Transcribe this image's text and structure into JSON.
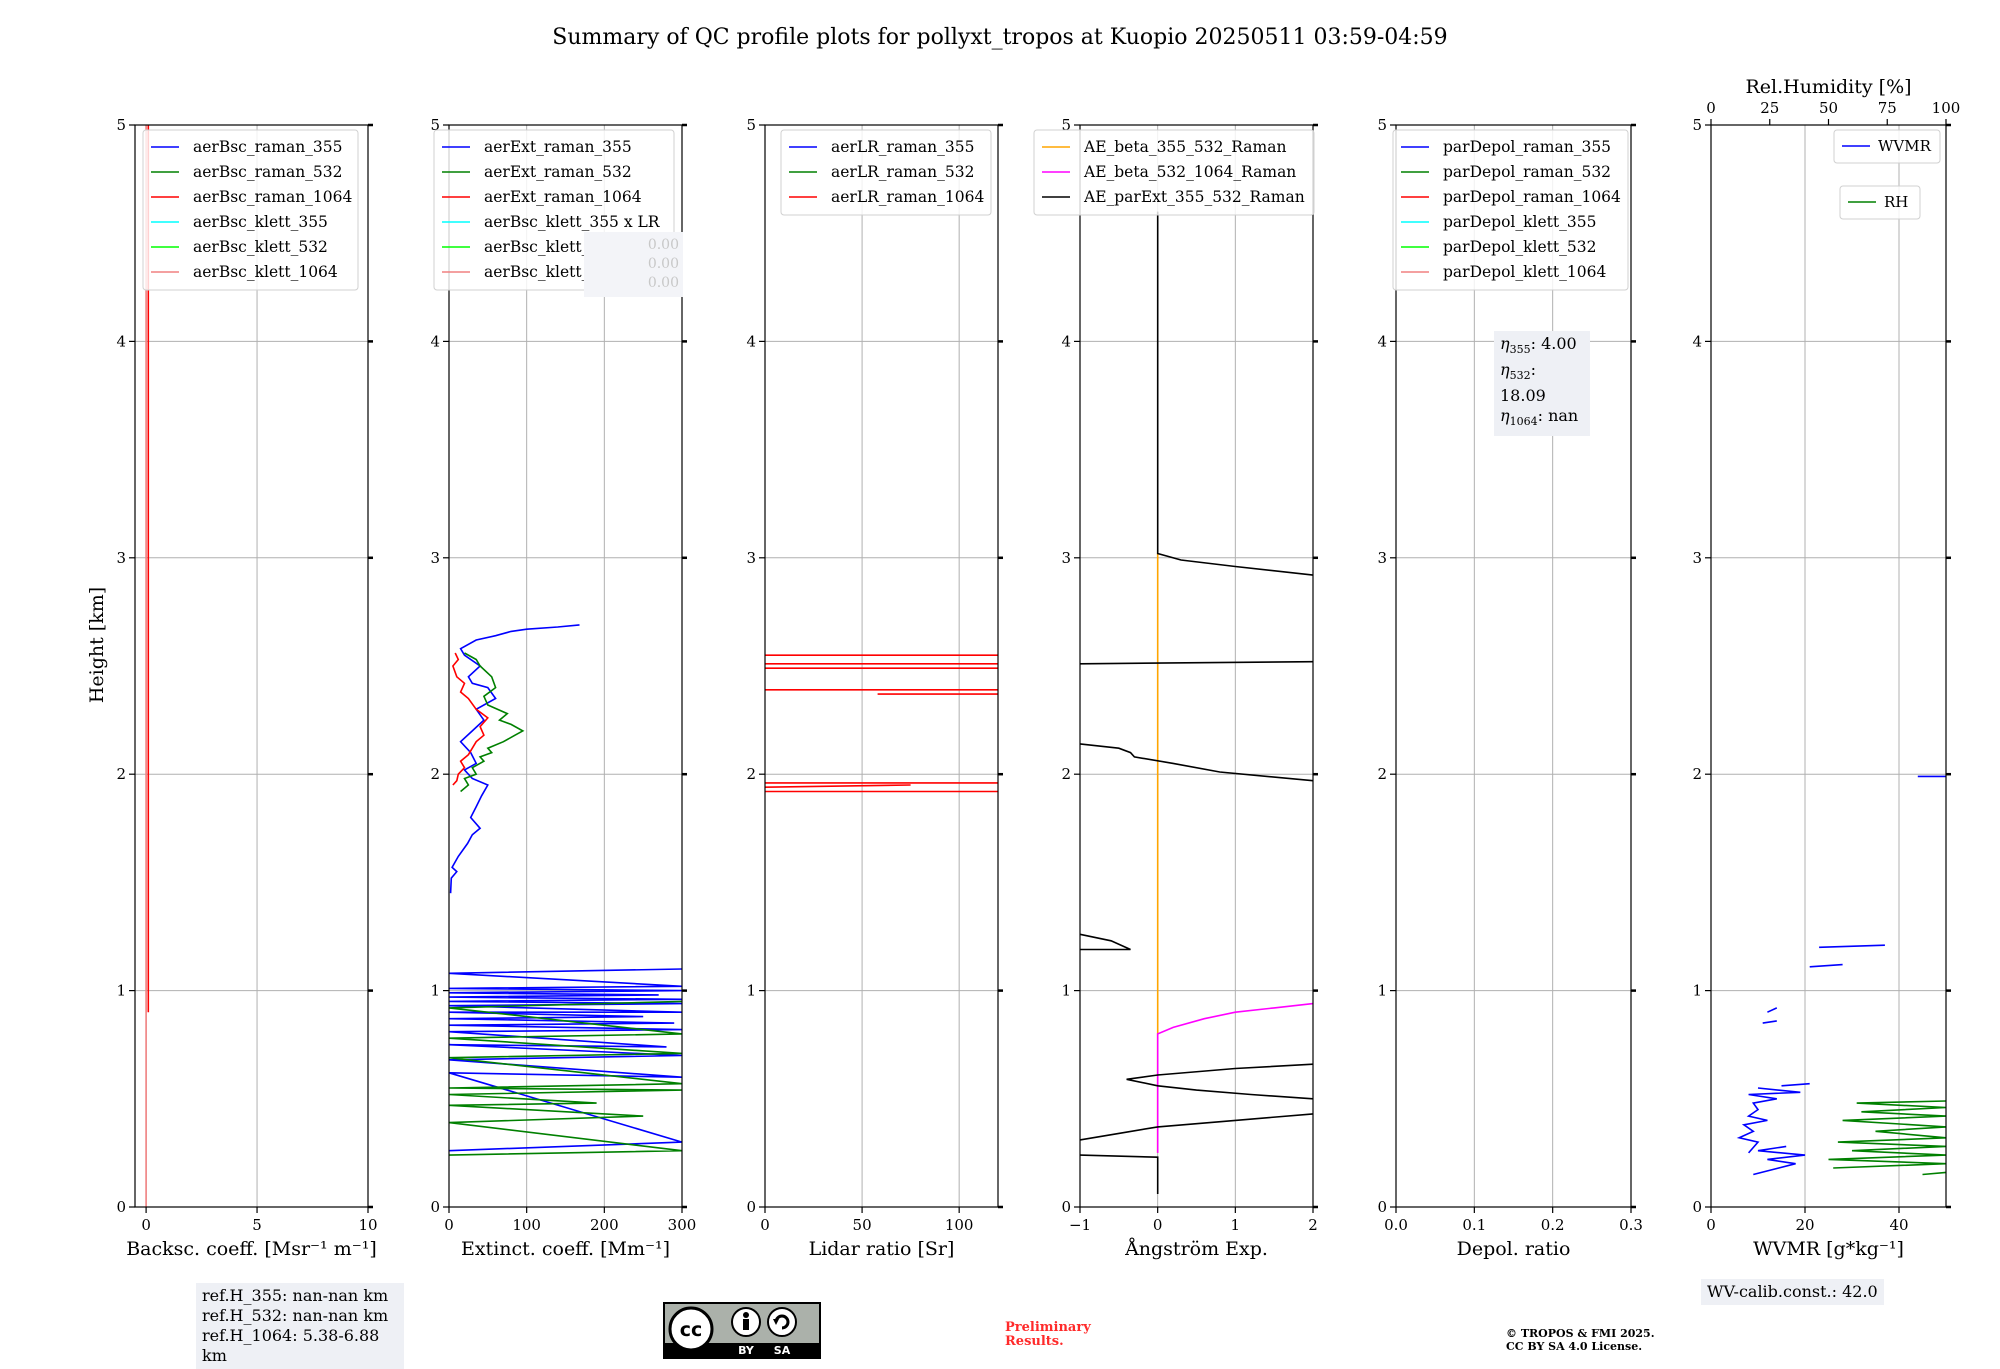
{
  "title": "Summary of QC profile plots for pollyxt_tropos at Kuopio 20250511 03:59-04:59",
  "y_axis_label": "Height [km]",
  "y_ticks": [
    "0",
    "1",
    "2",
    "3",
    "4",
    "5"
  ],
  "colors": {
    "blue": "#0000ff",
    "green": "#008000",
    "red": "#ff0000",
    "cyan": "#00ffff",
    "lime": "#00ff00",
    "pink": "#f08080",
    "orange": "#ffa500",
    "magenta": "#ff00ff",
    "black": "#000000"
  },
  "chart_data": [
    {
      "id": "bsc",
      "type": "line",
      "xlabel": "Backsc. coeff. [Msr⁻¹ m⁻¹]",
      "xlim": [
        -0.5,
        10
      ],
      "ylim": [
        0,
        5
      ],
      "xticks": [
        0,
        5,
        10
      ],
      "xtick_labels": [
        "0",
        "5",
        "10"
      ],
      "legend": [
        "aerBsc_raman_355",
        "aerBsc_raman_532",
        "aerBsc_raman_1064",
        "aerBsc_klett_355",
        "aerBsc_klett_532",
        "aerBsc_klett_1064"
      ],
      "legend_colors": [
        "blue",
        "green",
        "red",
        "cyan",
        "lime",
        "pink"
      ],
      "series": [
        {
          "name": "aerBsc_klett_1064",
          "color": "pink",
          "x": [
            0,
            0
          ],
          "y": [
            0,
            5
          ]
        },
        {
          "name": "aerBsc_raman_1064",
          "color": "red",
          "x": [
            0.1,
            0.1
          ],
          "y": [
            0.9,
            5
          ]
        }
      ]
    },
    {
      "id": "ext",
      "type": "line",
      "xlabel": "Extinct. coeff. [Mm⁻¹]",
      "xlim": [
        0,
        300
      ],
      "ylim": [
        0,
        5
      ],
      "xticks": [
        0,
        100,
        200,
        300
      ],
      "xtick_labels": [
        "0",
        "100",
        "200",
        "300"
      ],
      "legend": [
        "aerExt_raman_355",
        "aerExt_raman_532",
        "aerExt_raman_1064",
        "aerBsc_klett_355 x LR",
        "aerBsc_klett_532 x LR",
        "aerBsc_klett_1064 x LR"
      ],
      "legend_colors": [
        "blue",
        "green",
        "red",
        "cyan",
        "lime",
        "pink"
      ],
      "series": [
        {
          "name": "aerExt_raman_355",
          "color": "blue",
          "x": [
            2,
            3,
            10,
            4,
            12,
            24,
            30,
            40,
            28,
            35,
            42,
            50,
            30,
            20,
            35,
            28,
            15,
            30,
            45,
            35,
            60,
            50,
            30,
            25,
            40,
            20,
            15,
            35,
            60,
            80,
            100,
            140,
            168
          ],
          "y": [
            1.45,
            1.52,
            1.55,
            1.57,
            1.62,
            1.68,
            1.72,
            1.75,
            1.8,
            1.85,
            1.9,
            1.95,
            1.98,
            2.02,
            2.05,
            2.1,
            2.15,
            2.2,
            2.25,
            2.3,
            2.35,
            2.4,
            2.42,
            2.45,
            2.5,
            2.55,
            2.58,
            2.62,
            2.64,
            2.66,
            2.67,
            2.68,
            2.69
          ]
        },
        {
          "name": "aerExt_raman_532",
          "color": "green",
          "x": [
            15,
            25,
            20,
            35,
            30,
            45,
            40,
            55,
            50,
            70,
            85,
            95,
            80,
            65,
            75,
            50,
            45,
            60,
            55,
            40,
            35,
            20
          ],
          "y": [
            1.92,
            1.95,
            1.98,
            2.0,
            2.03,
            2.06,
            2.08,
            2.1,
            2.12,
            2.15,
            2.18,
            2.2,
            2.23,
            2.25,
            2.28,
            2.32,
            2.36,
            2.4,
            2.45,
            2.5,
            2.53,
            2.56
          ]
        },
        {
          "name": "aerExt_raman_1064",
          "color": "red",
          "x": [
            5,
            10,
            12,
            20,
            15,
            25,
            30,
            35,
            45,
            40,
            50,
            35,
            25,
            15,
            20,
            10,
            5,
            12,
            8
          ],
          "y": [
            1.95,
            1.97,
            2.0,
            2.03,
            2.06,
            2.09,
            2.12,
            2.15,
            2.18,
            2.22,
            2.26,
            2.3,
            2.35,
            2.38,
            2.42,
            2.45,
            2.5,
            2.53,
            2.56
          ]
        },
        {
          "name": "aerExt_raman_355_low",
          "color": "blue",
          "x": [
            0,
            300,
            0,
            300,
            0,
            300,
            0,
            280,
            0,
            300,
            0,
            290,
            0,
            250,
            0,
            300,
            0,
            300,
            0,
            300,
            0,
            270,
            0,
            300,
            0,
            300,
            0,
            300
          ],
          "y": [
            0.26,
            0.3,
            0.62,
            0.6,
            0.68,
            0.7,
            0.75,
            0.74,
            0.81,
            0.82,
            0.84,
            0.85,
            0.87,
            0.88,
            0.9,
            0.9,
            0.93,
            0.94,
            0.95,
            0.96,
            0.97,
            0.98,
            0.99,
            1.0,
            1.01,
            1.02,
            1.08,
            1.1
          ]
        },
        {
          "name": "aerExt_raman_532_low",
          "color": "green",
          "x": [
            0,
            300,
            0,
            250,
            0,
            190,
            0,
            300,
            0,
            300,
            0,
            300,
            0,
            300,
            0,
            300
          ],
          "y": [
            0.24,
            0.26,
            0.39,
            0.42,
            0.47,
            0.48,
            0.52,
            0.54,
            0.55,
            0.57,
            0.69,
            0.71,
            0.78,
            0.8,
            0.92,
            0.95
          ]
        }
      ]
    },
    {
      "id": "lr",
      "type": "line",
      "xlabel": "Lidar ratio [Sr]",
      "xlim": [
        0,
        120
      ],
      "ylim": [
        0,
        5
      ],
      "xticks": [
        0,
        50,
        100
      ],
      "xtick_labels": [
        "0",
        "50",
        "100"
      ],
      "legend": [
        "aerLR_raman_355",
        "aerLR_raman_532",
        "aerLR_raman_1064"
      ],
      "legend_colors": [
        "blue",
        "green",
        "red"
      ],
      "series": [
        {
          "name": "aerLR_raman_1064",
          "color": "red",
          "segments": [
            [
              [
                0,
                1.92
              ],
              [
                120,
                1.92
              ]
            ],
            [
              [
                0,
                1.94
              ],
              [
                75,
                1.95
              ]
            ],
            [
              [
                0,
                1.96
              ],
              [
                120,
                1.96
              ]
            ],
            [
              [
                0,
                2.39
              ],
              [
                120,
                2.39
              ]
            ],
            [
              [
                58,
                2.37
              ],
              [
                120,
                2.37
              ]
            ],
            [
              [
                0,
                2.49
              ],
              [
                120,
                2.49
              ]
            ],
            [
              [
                0,
                2.51
              ],
              [
                120,
                2.51
              ]
            ],
            [
              [
                0,
                2.55
              ],
              [
                120,
                2.55
              ]
            ]
          ]
        }
      ]
    },
    {
      "id": "ae",
      "type": "line",
      "xlabel": "Ångström Exp.",
      "xlim": [
        -1,
        2
      ],
      "ylim": [
        0,
        5
      ],
      "xticks": [
        -1,
        0,
        1,
        2
      ],
      "xtick_labels": [
        "−1",
        "0",
        "1",
        "2"
      ],
      "legend": [
        "AE_beta_355_532_Raman",
        "AE_beta_532_1064_Raman",
        "AE_parExt_355_532_Raman"
      ],
      "legend_colors": [
        "orange",
        "magenta",
        "black"
      ],
      "series": [
        {
          "name": "AE_beta_355_532_Raman",
          "color": "orange",
          "x": [
            0,
            0
          ],
          "y": [
            0.25,
            3.02
          ]
        },
        {
          "name": "AE_beta_532_1064_Raman",
          "color": "magenta",
          "x": [
            0,
            0,
            0.2,
            0.6,
            1.0,
            1.5,
            2.0
          ],
          "y": [
            0.25,
            0.8,
            0.83,
            0.87,
            0.9,
            0.92,
            0.94
          ]
        },
        {
          "name": "AE_parExt_355_532_Raman",
          "color": "black",
          "segments": [
            [
              [
                0,
                4.6
              ],
              [
                0,
                3.02
              ],
              [
                0.3,
                2.99
              ],
              [
                1.0,
                2.96
              ],
              [
                2.0,
                2.92
              ]
            ],
            [
              [
                -1,
                2.51
              ],
              [
                2.0,
                2.52
              ]
            ],
            [
              [
                -1,
                2.14
              ],
              [
                -0.5,
                2.12
              ],
              [
                -0.35,
                2.1
              ],
              [
                -0.3,
                2.08
              ],
              [
                0.2,
                2.05
              ],
              [
                0.8,
                2.01
              ],
              [
                2.0,
                1.97
              ]
            ],
            [
              [
                -1,
                1.26
              ],
              [
                -0.6,
                1.23
              ],
              [
                -0.35,
                1.19
              ],
              [
                -1,
                1.19
              ]
            ],
            [
              [
                -1,
                0.31
              ],
              [
                -0.5,
                0.34
              ],
              [
                0,
                0.37
              ],
              [
                1.0,
                0.4
              ],
              [
                2.0,
                0.43
              ]
            ],
            [
              [
                2.0,
                0.5
              ],
              [
                1.2,
                0.52
              ],
              [
                0.5,
                0.54
              ],
              [
                0,
                0.56
              ],
              [
                -0.4,
                0.59
              ],
              [
                0,
                0.61
              ],
              [
                1.0,
                0.64
              ],
              [
                2.0,
                0.66
              ]
            ],
            [
              [
                -1,
                0.24
              ],
              [
                0,
                0.23
              ],
              [
                0,
                0.06
              ]
            ]
          ]
        }
      ]
    },
    {
      "id": "depol",
      "type": "line",
      "xlabel": "Depol. ratio",
      "xlim": [
        0,
        0.3
      ],
      "ylim": [
        0,
        5
      ],
      "xticks": [
        0,
        0.1,
        0.2,
        0.3
      ],
      "xtick_labels": [
        "0.0",
        "0.1",
        "0.2",
        "0.3"
      ],
      "legend": [
        "parDepol_raman_355",
        "parDepol_raman_532",
        "parDepol_raman_1064",
        "parDepol_klett_355",
        "parDepol_klett_532",
        "parDepol_klett_1064"
      ],
      "legend_colors": [
        "blue",
        "green",
        "red",
        "cyan",
        "lime",
        "pink"
      ],
      "series": []
    },
    {
      "id": "wv",
      "type": "line",
      "xlabel": "WVMR [g*kg⁻¹]",
      "xlim": [
        0,
        50
      ],
      "ylim": [
        0,
        5
      ],
      "xticks": [
        0,
        20,
        40
      ],
      "xtick_labels": [
        "0",
        "20",
        "40"
      ],
      "top_xlabel": "Rel.Humidity [%]",
      "top_xticks": [
        0,
        25,
        50,
        75,
        100
      ],
      "top_xtick_labels": [
        "0",
        "25",
        "50",
        "75",
        "100"
      ],
      "legend": [
        "WVMR",
        "RH"
      ],
      "legend_colors": [
        "blue",
        "green"
      ],
      "series": [
        {
          "name": "WVMR",
          "color": "blue",
          "segments": [
            [
              [
                44,
                1.99
              ],
              [
                50,
                1.99
              ]
            ],
            [
              [
                23,
                1.2
              ],
              [
                37,
                1.21
              ]
            ],
            [
              [
                21,
                1.11
              ],
              [
                28,
                1.12
              ]
            ],
            [
              [
                12,
                0.9
              ],
              [
                14,
                0.92
              ]
            ],
            [
              [
                11,
                0.85
              ],
              [
                14,
                0.86
              ]
            ],
            [
              [
                15,
                0.56
              ],
              [
                21,
                0.57
              ]
            ],
            [
              [
                8,
                0.25
              ],
              [
                10,
                0.3
              ],
              [
                6,
                0.32
              ],
              [
                9,
                0.35
              ],
              [
                7,
                0.38
              ],
              [
                12,
                0.4
              ],
              [
                8,
                0.42
              ],
              [
                10,
                0.45
              ],
              [
                9,
                0.48
              ],
              [
                14,
                0.5
              ],
              [
                8,
                0.52
              ],
              [
                19,
                0.53
              ],
              [
                10,
                0.55
              ]
            ],
            [
              [
                9,
                0.15
              ],
              [
                18,
                0.2
              ],
              [
                12,
                0.22
              ],
              [
                20,
                0.24
              ],
              [
                10,
                0.26
              ],
              [
                16,
                0.28
              ]
            ]
          ]
        },
        {
          "name": "RH",
          "color": "green",
          "segments": [
            [
              [
                26,
                0.18
              ],
              [
                50,
                0.2
              ],
              [
                25,
                0.22
              ],
              [
                50,
                0.24
              ],
              [
                30,
                0.26
              ],
              [
                50,
                0.28
              ],
              [
                27,
                0.3
              ],
              [
                50,
                0.32
              ],
              [
                35,
                0.35
              ],
              [
                50,
                0.37
              ],
              [
                28,
                0.4
              ],
              [
                50,
                0.42
              ],
              [
                32,
                0.44
              ],
              [
                50,
                0.46
              ],
              [
                31,
                0.48
              ],
              [
                50,
                0.49
              ]
            ],
            [
              [
                45,
                0.15
              ],
              [
                50,
                0.16
              ]
            ]
          ]
        }
      ]
    }
  ],
  "annotations": {
    "ext_faint": [
      "0.00",
      "0.00",
      "0.00"
    ],
    "eta": [
      {
        "sym": "η",
        "sub": "355",
        "val": ": 4.00"
      },
      {
        "sym": "η",
        "sub": "532",
        "val": ": 18.09"
      },
      {
        "sym": "η",
        "sub": "1064",
        "val": ": nan"
      }
    ],
    "refh": [
      "ref.H_355: nan-nan km",
      "ref.H_532: nan-nan km",
      "ref.H_1064: 5.38-6.88 km"
    ],
    "wv_calib": "WV-calib.const.: 42.0",
    "preliminary": [
      "Preliminary",
      "Results."
    ],
    "copyright": [
      "© TROPOS & FMI 2025.",
      "CC BY SA 4.0 License."
    ],
    "cc_logo_text": [
      "BY",
      "SA"
    ]
  }
}
